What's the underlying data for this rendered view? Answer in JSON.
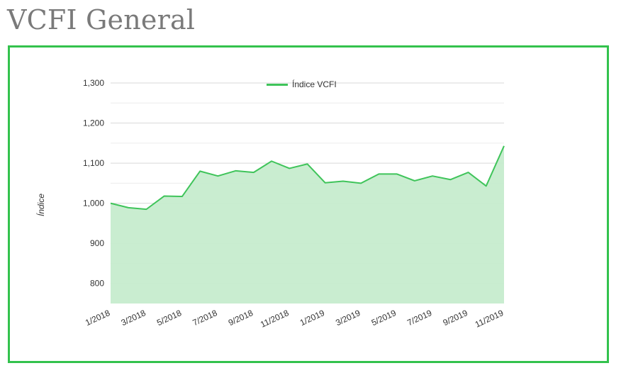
{
  "page": {
    "title": "VCFI General"
  },
  "colors": {
    "accent": "#33c24d",
    "line": "#3fc45a",
    "area": "#c6ecce",
    "grid": "#d9d9d9",
    "title": "#7a7a7a",
    "text": "#333333"
  },
  "chart_data": {
    "type": "area",
    "title": "",
    "xlabel": "",
    "ylabel": "Índice",
    "legend": {
      "position": "top-center",
      "entries": [
        "Índice VCFI"
      ]
    },
    "grid": true,
    "ylim": [
      750,
      1300
    ],
    "y_ticks": [
      800,
      900,
      1000,
      1100,
      1200,
      1300
    ],
    "y_tick_labels": [
      "800",
      "900",
      "1,000",
      "1,100",
      "1,200",
      "1,300"
    ],
    "x_tick_labels": [
      "1/2018",
      "3/2018",
      "5/2018",
      "7/2018",
      "9/2018",
      "11/2018",
      "1/2019",
      "3/2019",
      "5/2019",
      "7/2019",
      "9/2019",
      "11/2019"
    ],
    "x": [
      "1/2018",
      "2/2018",
      "3/2018",
      "4/2018",
      "5/2018",
      "6/2018",
      "7/2018",
      "8/2018",
      "9/2018",
      "10/2018",
      "11/2018",
      "12/2018",
      "1/2019",
      "2/2019",
      "3/2019",
      "4/2019",
      "5/2019",
      "6/2019",
      "7/2019",
      "8/2019",
      "9/2019",
      "10/2019",
      "11/2019"
    ],
    "series": [
      {
        "name": "Índice VCFI",
        "values": [
          1000,
          989,
          985,
          1018,
          1017,
          1080,
          1068,
          1081,
          1077,
          1105,
          1087,
          1098,
          1051,
          1055,
          1050,
          1073,
          1073,
          1056,
          1068,
          1059,
          1077,
          1043,
          1143
        ]
      }
    ]
  }
}
